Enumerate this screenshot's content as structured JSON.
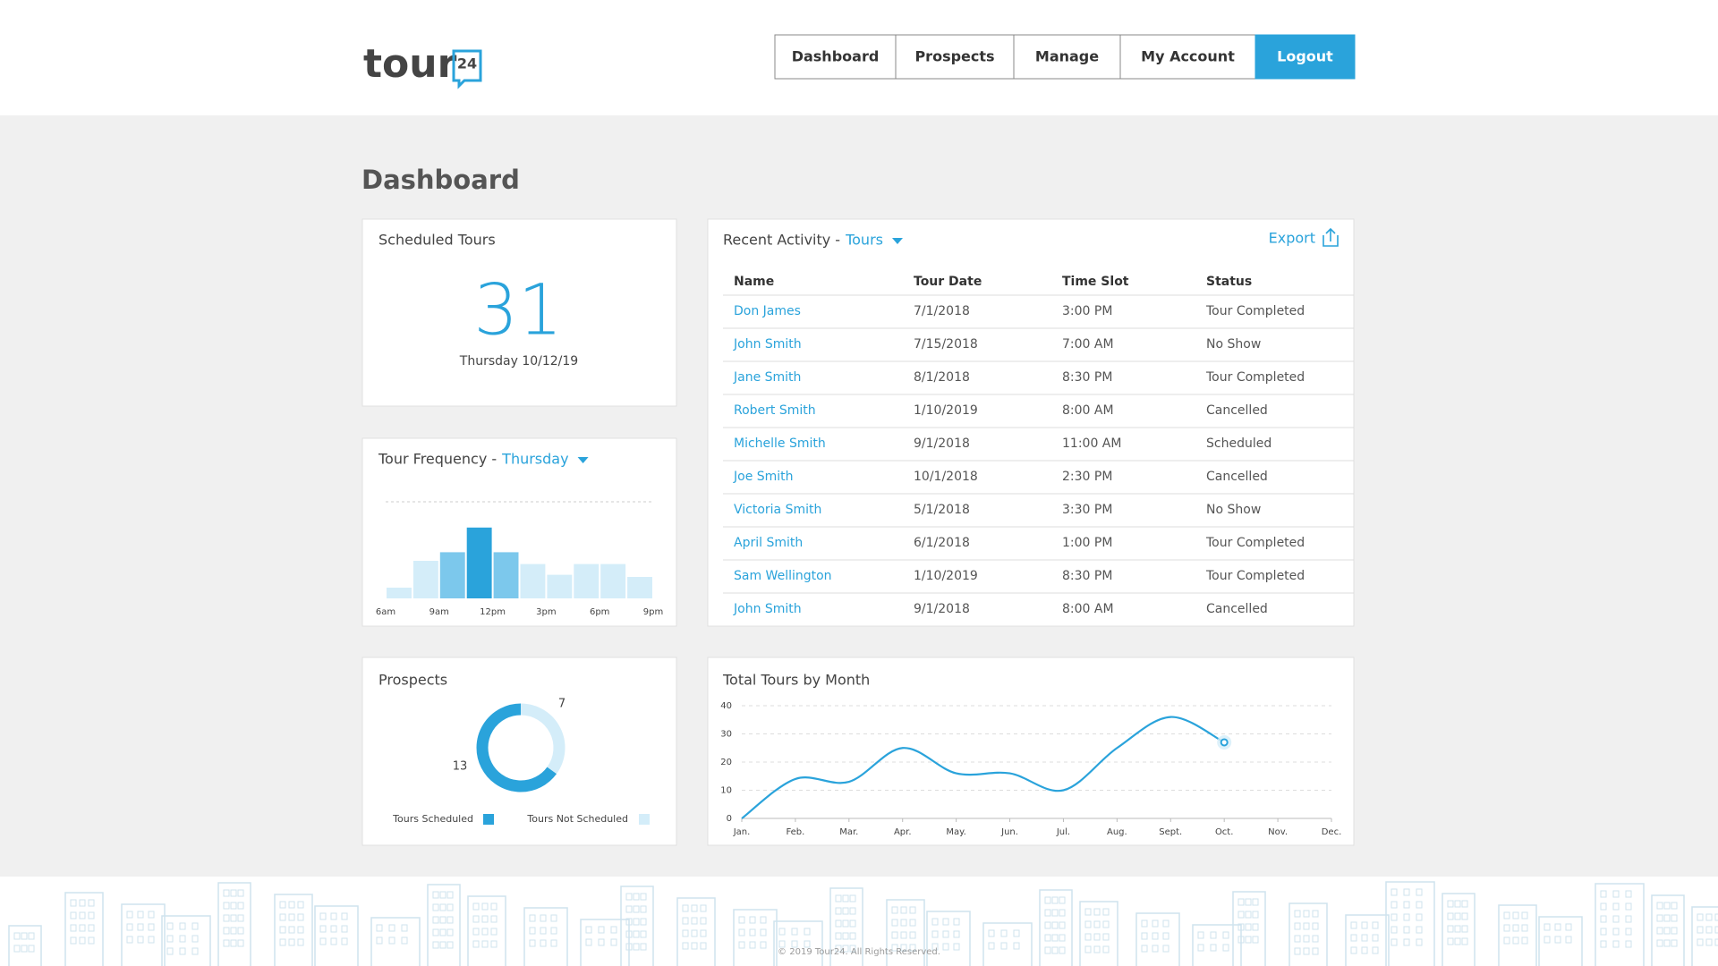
{
  "header": {
    "logo_text": "tour",
    "logo_badge": "24"
  },
  "nav": [
    "Dashboard",
    "Prospects",
    "Manage",
    "My Account",
    "Logout"
  ],
  "page_title": "Dashboard",
  "scheduled_tours": {
    "title": "Scheduled Tours",
    "count": 31,
    "date": "Thursday 10/12/19"
  },
  "tour_frequency": {
    "type": "bar",
    "title": "Tour Frequency -",
    "filter": "Thursday",
    "x_labels": [
      "6am",
      "9am",
      "12pm",
      "3pm",
      "6pm",
      "9pm"
    ],
    "values": [
      1,
      3.5,
      4.3,
      6.6,
      4.3,
      3.2,
      2.2,
      3.2,
      3.2,
      2
    ],
    "colors": [
      "#d4edf9",
      "#d4edf9",
      "#7cc8ec",
      "#2aa3db",
      "#7cc8ec",
      "#d4edf9",
      "#d4edf9",
      "#d4edf9",
      "#d4edf9",
      "#d4edf9"
    ],
    "ylim": [
      0,
      9
    ]
  },
  "recent_activity": {
    "title": "Recent Activity -",
    "filter": "Tours",
    "export": "Export",
    "columns": [
      "Name",
      "Tour Date",
      "Time Slot",
      "Status"
    ],
    "rows": [
      [
        "Don James",
        "7/1/2018",
        "3:00 PM",
        "Tour Completed"
      ],
      [
        "John Smith",
        "7/15/2018",
        "7:00 AM",
        "No Show"
      ],
      [
        "Jane Smith",
        "8/1/2018",
        "8:30 PM",
        "Tour Completed"
      ],
      [
        "Robert Smith",
        "1/10/2019",
        "8:00 AM",
        "Cancelled"
      ],
      [
        "Michelle Smith",
        "9/1/2018",
        "11:00 AM",
        "Scheduled"
      ],
      [
        "Joe Smith",
        "10/1/2018",
        "2:30 PM",
        "Cancelled"
      ],
      [
        "Victoria Smith",
        "5/1/2018",
        "3:30 PM",
        "No Show"
      ],
      [
        "April Smith",
        "6/1/2018",
        "1:00 PM",
        "Tour Completed"
      ],
      [
        "Sam Wellington",
        "1/10/2019",
        "8:30 PM",
        "Tour Completed"
      ],
      [
        "John Smith",
        "9/1/2018",
        "8:00 AM",
        "Cancelled"
      ]
    ]
  },
  "prospects": {
    "type": "donut",
    "title": "Prospects",
    "categories": [
      "Tours Scheduled",
      "Tours Not Scheduled"
    ],
    "values": [
      13,
      7
    ],
    "colors": [
      "#2aa3db",
      "#d4edf9"
    ]
  },
  "monthly": {
    "type": "line",
    "title": "Total Tours by Month",
    "categories": [
      "Jan.",
      "Feb.",
      "Mar.",
      "Apr.",
      "May.",
      "Jun.",
      "Jul.",
      "Aug.",
      "Sept.",
      "Oct.",
      "Nov.",
      "Dec."
    ],
    "values": [
      0,
      14,
      13,
      25,
      16,
      16,
      10,
      25,
      36,
      27,
      null,
      null
    ],
    "color": "#2aa3db",
    "ylim": [
      0,
      40
    ],
    "yticks": [
      0,
      10,
      20,
      30,
      40
    ],
    "grid": true
  },
  "footer": "© 2019 Tour24. All Rights Reserved."
}
